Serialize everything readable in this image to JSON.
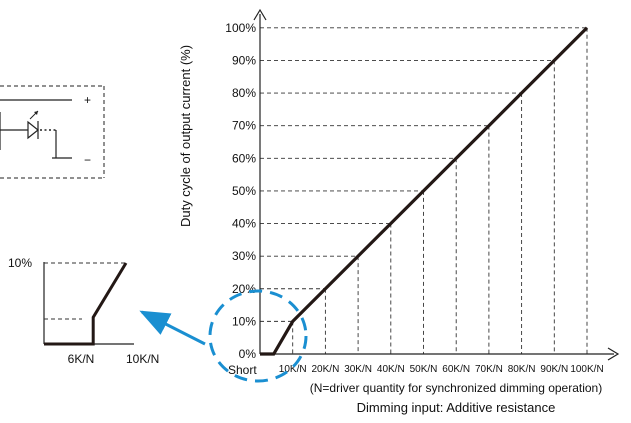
{
  "chart_data": [
    {
      "type": "line",
      "title": "",
      "xlabel": "Dimming input: Additive resistance",
      "ylabel": "Duty cycle of output current (%)",
      "x_note": "(N=driver quantity for synchronized dimming operation)",
      "categories": [
        "Short",
        "10K/N",
        "20K/N",
        "30K/N",
        "40K/N",
        "50K/N",
        "60K/N",
        "70K/N",
        "80K/N",
        "90K/N",
        "100K/N"
      ],
      "y_ticks": [
        "0%",
        "10%",
        "20%",
        "30%",
        "40%",
        "50%",
        "60%",
        "70%",
        "80%",
        "90%",
        "100%"
      ],
      "x_range": [
        0,
        100
      ],
      "ylim": [
        0,
        100
      ],
      "grid": "dashed guide lines at each tick",
      "series": [
        {
          "x": [
            0,
            4.2,
            10,
            20,
            30,
            40,
            50,
            60,
            70,
            80,
            90,
            100
          ],
          "y": [
            0,
            0,
            10,
            20,
            30,
            40,
            50,
            60,
            70,
            80,
            90,
            100
          ]
        }
      ]
    },
    {
      "type": "line",
      "title": "",
      "categories": [
        "6K/N",
        "10K/N"
      ],
      "y_ticks": [
        "10%"
      ],
      "series": [
        {
          "x": [
            0,
            6,
            6,
            10
          ],
          "y": [
            0,
            0,
            3.3,
            10
          ]
        }
      ]
    }
  ],
  "circuit": {
    "plus_label": "+",
    "minus_label": "−"
  },
  "colors": {
    "line": "#231815",
    "highlight": "#1a8fd1",
    "grid": "#333333"
  }
}
